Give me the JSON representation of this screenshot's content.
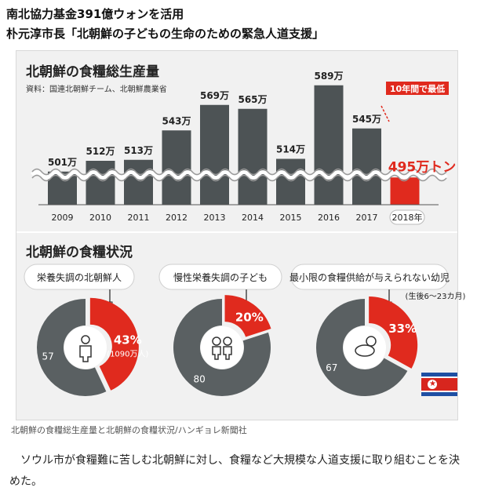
{
  "headline": {
    "line1": "南北協力基金391億ウォンを活用",
    "line2": "朴元淳市長「北朝鮮の子どもの生命のための緊急人道支援」"
  },
  "infographic": {
    "title": "北朝鮮の食糧総生産量",
    "source": "資料：国連北朝鮮チーム、北朝鮮農業省",
    "highlight_badge": "10年間で最低",
    "section2_title": "北朝鮮の食糧状況",
    "colors": {
      "bar": "#4d5355",
      "highlight": "#e02a1e",
      "donut_gray": "#5a6062",
      "donut_red": "#e02a1e"
    },
    "flag": "north-korea-flag"
  },
  "chart_data": [
    {
      "type": "bar",
      "title": "北朝鮮の食糧総生産量",
      "categories": [
        "2009",
        "2010",
        "2011",
        "2012",
        "2013",
        "2014",
        "2015",
        "2016",
        "2017",
        "2018年"
      ],
      "values": [
        501,
        512,
        513,
        543,
        569,
        565,
        514,
        589,
        545,
        495
      ],
      "value_labels": [
        "501万",
        "512万",
        "513万",
        "543万",
        "569万",
        "565万",
        "514万",
        "589万",
        "545万",
        "495万トン"
      ],
      "unit": "万トン",
      "axis_break": true,
      "highlight_index": 9
    },
    {
      "type": "pie",
      "label": "栄養失調の北朝鮮人",
      "slices": [
        {
          "label": "43%",
          "value": 43,
          "note": "(1090万人)"
        },
        {
          "label": "57",
          "value": 57
        }
      ],
      "icon": "adult-icon"
    },
    {
      "type": "pie",
      "label": "慢性栄養失調の子ども",
      "slices": [
        {
          "label": "20%",
          "value": 20
        },
        {
          "label": "80",
          "value": 80
        }
      ],
      "icon": "children-icon"
    },
    {
      "type": "pie",
      "label": "最小限の食糧供給が与えられない幼児",
      "sublabel": "(生後6～23カ月)",
      "slices": [
        {
          "label": "33%",
          "value": 33
        },
        {
          "label": "67",
          "value": 67
        }
      ],
      "icon": "baby-icon"
    }
  ],
  "caption": "北朝鮮の食糧総生産量と北朝鮮の食糧状況/ハンギョレ新聞社",
  "body_text": "ソウル市が食糧難に苦しむ北朝鮮に対し、食糧など大規模な人道支援に取り組むことを決めた。"
}
